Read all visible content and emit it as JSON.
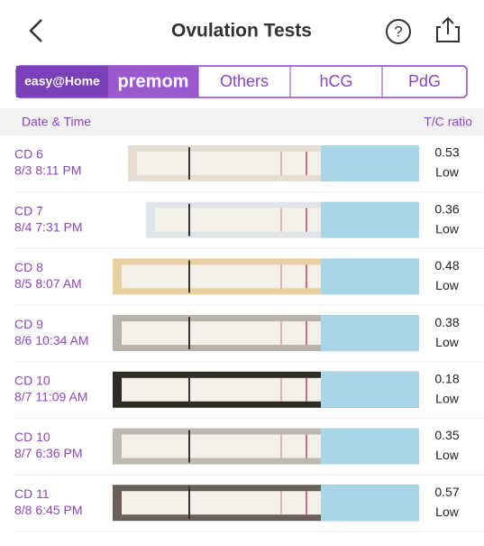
{
  "header": {
    "title": "Ovulation Tests"
  },
  "tabs": [
    "easy@Home",
    "premom",
    "Others",
    "hCG",
    "PdG"
  ],
  "table": {
    "columns": [
      "Date & Time",
      "T/C ratio"
    ],
    "rows": [
      {
        "cd": "CD 6",
        "date": "8/3 8:11 PM",
        "ratio": "0.53",
        "level": "Low"
      },
      {
        "cd": "CD 7",
        "date": "8/4 7:31 PM",
        "ratio": "0.36",
        "level": "Low"
      },
      {
        "cd": "CD 8",
        "date": "8/5 8:07 AM",
        "ratio": "0.48",
        "level": "Low"
      },
      {
        "cd": "CD 9",
        "date": "8/6 10:34 AM",
        "ratio": "0.38",
        "level": "Low"
      },
      {
        "cd": "CD 10",
        "date": "8/7 11:09 AM",
        "ratio": "0.18",
        "level": "Low"
      },
      {
        "cd": "CD 10",
        "date": "8/7 6:36 PM",
        "ratio": "0.35",
        "level": "Low"
      },
      {
        "cd": "CD 11",
        "date": "8/8 6:45 PM",
        "ratio": "0.57",
        "level": "Low"
      }
    ]
  }
}
